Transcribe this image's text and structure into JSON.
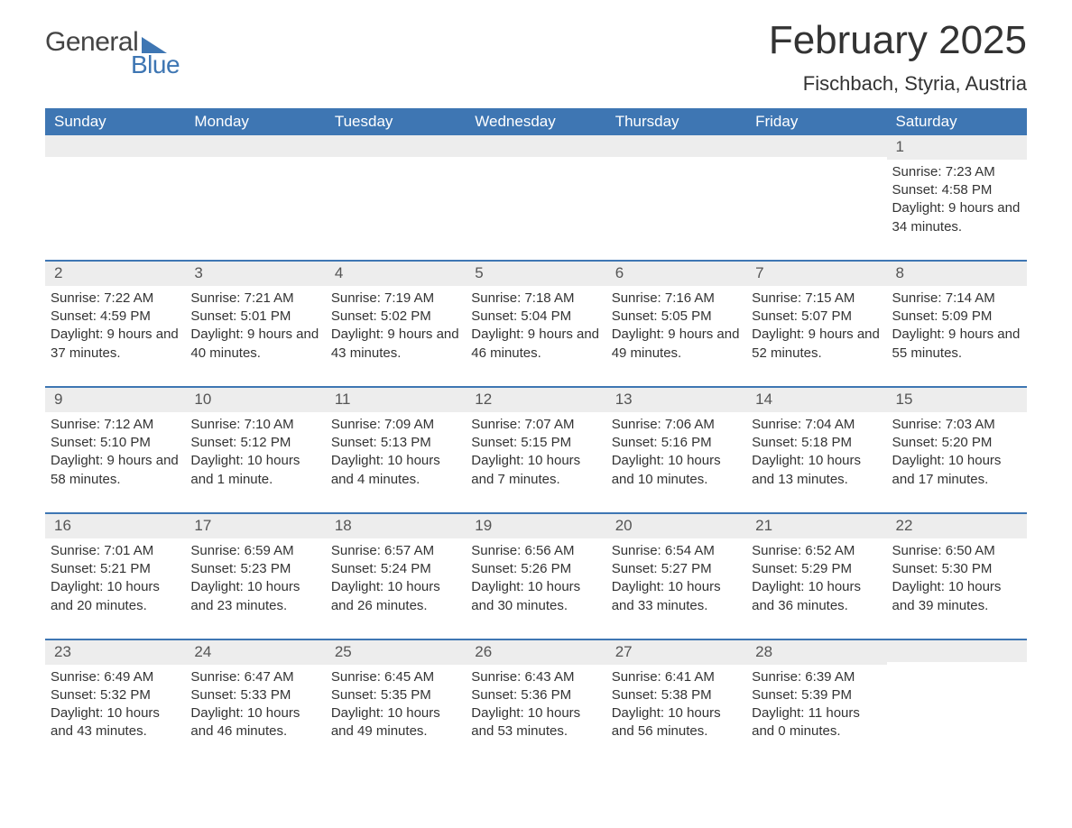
{
  "logo": {
    "part1": "General",
    "part2": "Blue"
  },
  "title": "February 2025",
  "location": "Fischbach, Styria, Austria",
  "colors": {
    "header_bg": "#3e76b3",
    "header_text": "#ffffff",
    "daynum_bg": "#ededed",
    "border": "#3e76b3",
    "body_text": "#333333",
    "background": "#ffffff"
  },
  "day_headers": [
    "Sunday",
    "Monday",
    "Tuesday",
    "Wednesday",
    "Thursday",
    "Friday",
    "Saturday"
  ],
  "weeks": [
    [
      {
        "day": "",
        "sunrise": "",
        "sunset": "",
        "daylight": ""
      },
      {
        "day": "",
        "sunrise": "",
        "sunset": "",
        "daylight": ""
      },
      {
        "day": "",
        "sunrise": "",
        "sunset": "",
        "daylight": ""
      },
      {
        "day": "",
        "sunrise": "",
        "sunset": "",
        "daylight": ""
      },
      {
        "day": "",
        "sunrise": "",
        "sunset": "",
        "daylight": ""
      },
      {
        "day": "",
        "sunrise": "",
        "sunset": "",
        "daylight": ""
      },
      {
        "day": "1",
        "sunrise": "Sunrise: 7:23 AM",
        "sunset": "Sunset: 4:58 PM",
        "daylight": "Daylight: 9 hours and 34 minutes."
      }
    ],
    [
      {
        "day": "2",
        "sunrise": "Sunrise: 7:22 AM",
        "sunset": "Sunset: 4:59 PM",
        "daylight": "Daylight: 9 hours and 37 minutes."
      },
      {
        "day": "3",
        "sunrise": "Sunrise: 7:21 AM",
        "sunset": "Sunset: 5:01 PM",
        "daylight": "Daylight: 9 hours and 40 minutes."
      },
      {
        "day": "4",
        "sunrise": "Sunrise: 7:19 AM",
        "sunset": "Sunset: 5:02 PM",
        "daylight": "Daylight: 9 hours and 43 minutes."
      },
      {
        "day": "5",
        "sunrise": "Sunrise: 7:18 AM",
        "sunset": "Sunset: 5:04 PM",
        "daylight": "Daylight: 9 hours and 46 minutes."
      },
      {
        "day": "6",
        "sunrise": "Sunrise: 7:16 AM",
        "sunset": "Sunset: 5:05 PM",
        "daylight": "Daylight: 9 hours and 49 minutes."
      },
      {
        "day": "7",
        "sunrise": "Sunrise: 7:15 AM",
        "sunset": "Sunset: 5:07 PM",
        "daylight": "Daylight: 9 hours and 52 minutes."
      },
      {
        "day": "8",
        "sunrise": "Sunrise: 7:14 AM",
        "sunset": "Sunset: 5:09 PM",
        "daylight": "Daylight: 9 hours and 55 minutes."
      }
    ],
    [
      {
        "day": "9",
        "sunrise": "Sunrise: 7:12 AM",
        "sunset": "Sunset: 5:10 PM",
        "daylight": "Daylight: 9 hours and 58 minutes."
      },
      {
        "day": "10",
        "sunrise": "Sunrise: 7:10 AM",
        "sunset": "Sunset: 5:12 PM",
        "daylight": "Daylight: 10 hours and 1 minute."
      },
      {
        "day": "11",
        "sunrise": "Sunrise: 7:09 AM",
        "sunset": "Sunset: 5:13 PM",
        "daylight": "Daylight: 10 hours and 4 minutes."
      },
      {
        "day": "12",
        "sunrise": "Sunrise: 7:07 AM",
        "sunset": "Sunset: 5:15 PM",
        "daylight": "Daylight: 10 hours and 7 minutes."
      },
      {
        "day": "13",
        "sunrise": "Sunrise: 7:06 AM",
        "sunset": "Sunset: 5:16 PM",
        "daylight": "Daylight: 10 hours and 10 minutes."
      },
      {
        "day": "14",
        "sunrise": "Sunrise: 7:04 AM",
        "sunset": "Sunset: 5:18 PM",
        "daylight": "Daylight: 10 hours and 13 minutes."
      },
      {
        "day": "15",
        "sunrise": "Sunrise: 7:03 AM",
        "sunset": "Sunset: 5:20 PM",
        "daylight": "Daylight: 10 hours and 17 minutes."
      }
    ],
    [
      {
        "day": "16",
        "sunrise": "Sunrise: 7:01 AM",
        "sunset": "Sunset: 5:21 PM",
        "daylight": "Daylight: 10 hours and 20 minutes."
      },
      {
        "day": "17",
        "sunrise": "Sunrise: 6:59 AM",
        "sunset": "Sunset: 5:23 PM",
        "daylight": "Daylight: 10 hours and 23 minutes."
      },
      {
        "day": "18",
        "sunrise": "Sunrise: 6:57 AM",
        "sunset": "Sunset: 5:24 PM",
        "daylight": "Daylight: 10 hours and 26 minutes."
      },
      {
        "day": "19",
        "sunrise": "Sunrise: 6:56 AM",
        "sunset": "Sunset: 5:26 PM",
        "daylight": "Daylight: 10 hours and 30 minutes."
      },
      {
        "day": "20",
        "sunrise": "Sunrise: 6:54 AM",
        "sunset": "Sunset: 5:27 PM",
        "daylight": "Daylight: 10 hours and 33 minutes."
      },
      {
        "day": "21",
        "sunrise": "Sunrise: 6:52 AM",
        "sunset": "Sunset: 5:29 PM",
        "daylight": "Daylight: 10 hours and 36 minutes."
      },
      {
        "day": "22",
        "sunrise": "Sunrise: 6:50 AM",
        "sunset": "Sunset: 5:30 PM",
        "daylight": "Daylight: 10 hours and 39 minutes."
      }
    ],
    [
      {
        "day": "23",
        "sunrise": "Sunrise: 6:49 AM",
        "sunset": "Sunset: 5:32 PM",
        "daylight": "Daylight: 10 hours and 43 minutes."
      },
      {
        "day": "24",
        "sunrise": "Sunrise: 6:47 AM",
        "sunset": "Sunset: 5:33 PM",
        "daylight": "Daylight: 10 hours and 46 minutes."
      },
      {
        "day": "25",
        "sunrise": "Sunrise: 6:45 AM",
        "sunset": "Sunset: 5:35 PM",
        "daylight": "Daylight: 10 hours and 49 minutes."
      },
      {
        "day": "26",
        "sunrise": "Sunrise: 6:43 AM",
        "sunset": "Sunset: 5:36 PM",
        "daylight": "Daylight: 10 hours and 53 minutes."
      },
      {
        "day": "27",
        "sunrise": "Sunrise: 6:41 AM",
        "sunset": "Sunset: 5:38 PM",
        "daylight": "Daylight: 10 hours and 56 minutes."
      },
      {
        "day": "28",
        "sunrise": "Sunrise: 6:39 AM",
        "sunset": "Sunset: 5:39 PM",
        "daylight": "Daylight: 11 hours and 0 minutes."
      },
      {
        "day": "",
        "sunrise": "",
        "sunset": "",
        "daylight": ""
      }
    ]
  ]
}
